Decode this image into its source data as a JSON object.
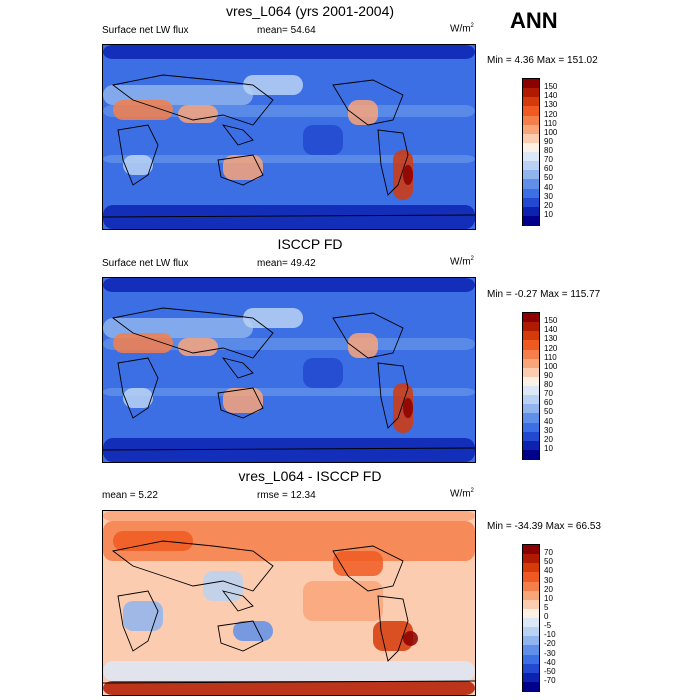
{
  "header": {
    "season": "ANN"
  },
  "panels": [
    {
      "title": "vres_L064 (yrs 2001-2004)",
      "left_label": "Surface net LW flux",
      "center_label": "mean=  54.64",
      "units": "W/m",
      "units_sup": "2",
      "minmax": "Min =   4.36 Max = 151.02",
      "colorbar_ticks": [
        "150",
        "140",
        "130",
        "120",
        "110",
        "100",
        "90",
        "80",
        "70",
        "60",
        "50",
        "40",
        "30",
        "20",
        "10"
      ],
      "colorbar_colors": [
        "#8b0000",
        "#b01a00",
        "#d43a0a",
        "#ee5a22",
        "#f57f4a",
        "#f9a57a",
        "#fbccb0",
        "#fdf0e4",
        "#dce8f8",
        "#b9d2f3",
        "#8fb4ee",
        "#5f8fe8",
        "#3c6ee4",
        "#2249cf",
        "#0c23b0",
        "#00008b"
      ],
      "fill_base": "#3c6ee4"
    },
    {
      "title": "ISCCP FD",
      "left_label": "Surface net LW flux",
      "center_label": "mean=  49.42",
      "units": "W/m",
      "units_sup": "2",
      "minmax": "Min =  -0.27 Max = 115.77",
      "colorbar_ticks": [
        "150",
        "140",
        "130",
        "120",
        "110",
        "100",
        "90",
        "80",
        "70",
        "60",
        "50",
        "40",
        "30",
        "20",
        "10"
      ],
      "colorbar_colors": [
        "#8b0000",
        "#b01a00",
        "#d43a0a",
        "#ee5a22",
        "#f57f4a",
        "#f9a57a",
        "#fbccb0",
        "#fdf0e4",
        "#dce8f8",
        "#b9d2f3",
        "#8fb4ee",
        "#5f8fe8",
        "#3c6ee4",
        "#2249cf",
        "#0c23b0",
        "#00008b"
      ],
      "fill_base": "#3c6ee4"
    },
    {
      "title": "vres_L064 - ISCCP FD",
      "left_label": "mean =   5.22",
      "center_label": "rmse =  12.34",
      "units": "W/m",
      "units_sup": "2",
      "minmax": "Min = -34.39 Max =  66.53",
      "colorbar_ticks": [
        "70",
        "50",
        "40",
        "30",
        "20",
        "10",
        "5",
        "0",
        "-5",
        "-10",
        "-20",
        "-30",
        "-40",
        "-50",
        "-70"
      ],
      "colorbar_colors": [
        "#8b0000",
        "#b01a00",
        "#d43a0a",
        "#ee5a22",
        "#f57f4a",
        "#f9a57a",
        "#fbccb0",
        "#fdf0e4",
        "#dce8f8",
        "#b9d2f3",
        "#8fb4ee",
        "#5f8fe8",
        "#3c6ee4",
        "#2249cf",
        "#0c23b0",
        "#00008b"
      ],
      "fill_base": "#fbccb0"
    }
  ]
}
